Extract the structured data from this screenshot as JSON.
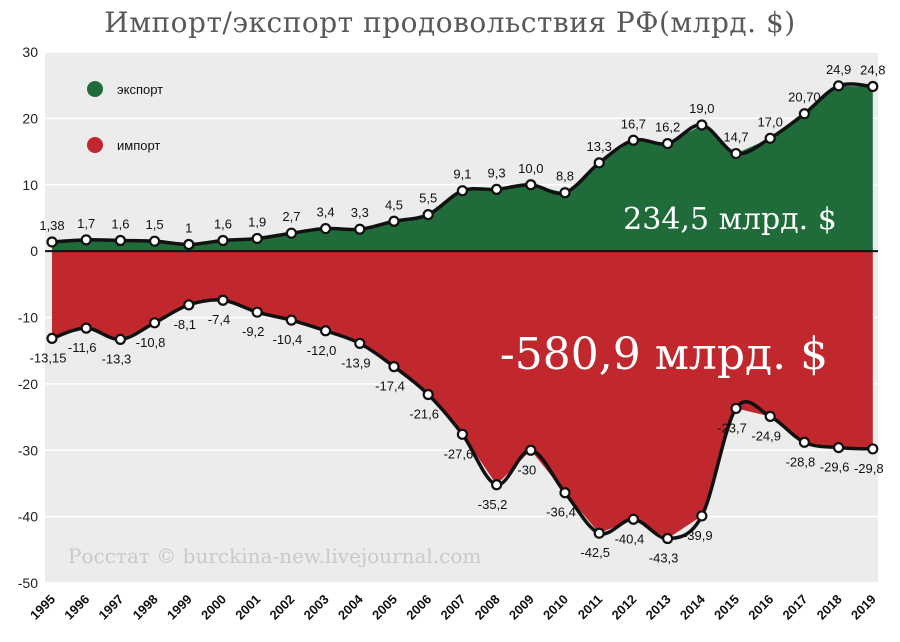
{
  "title": "Импорт/экспорт продовольствия РФ(млрд. $)",
  "colors": {
    "export": "#1f6b3a",
    "import": "#c0282d",
    "line": "#111111",
    "plot_bg": "#ececec"
  },
  "chart_data": {
    "type": "area",
    "title": "Импорт/экспорт продовольствия РФ(млрд. $)",
    "xlabel": "",
    "ylabel": "",
    "ylim": [
      -50,
      30
    ],
    "yticks": [
      "30",
      "20",
      "10",
      "0",
      "-10",
      "-20",
      "-30",
      "-40",
      "-50"
    ],
    "grid": true,
    "legend_position": "top-left",
    "categories": [
      "1995",
      "1996",
      "1997",
      "1998",
      "1999",
      "2000",
      "2001",
      "2002",
      "2003",
      "2004",
      "2005",
      "2006",
      "2007",
      "2008",
      "2009",
      "2010",
      "2011",
      "2012",
      "2013",
      "2014",
      "2015",
      "2016",
      "2017",
      "2018",
      "2019"
    ],
    "series": [
      {
        "name": "экспорт",
        "values": [
          1.38,
          1.7,
          1.6,
          1.5,
          1,
          1.6,
          1.9,
          2.7,
          3.4,
          3.3,
          4.5,
          5.5,
          9.1,
          9.3,
          10.0,
          8.8,
          13.3,
          16.7,
          16.2,
          19.0,
          14.7,
          17.0,
          20.7,
          24.9,
          24.8
        ],
        "labels": [
          "1,38",
          "1,7",
          "1,6",
          "1,5",
          "1",
          "1,6",
          "1,9",
          "2,7",
          "3,4",
          "3,3",
          "4,5",
          "5,5",
          "9,1",
          "9,3",
          "10,0",
          "8,8",
          "13,3",
          "16,7",
          "16,2",
          "19,0",
          "14,7",
          "17,0",
          "20,70",
          "24,9",
          "24,8"
        ]
      },
      {
        "name": "импорт",
        "values": [
          -13.15,
          -11.6,
          -13.3,
          -10.8,
          -8.1,
          -7.4,
          -9.2,
          -10.4,
          -12.0,
          -13.9,
          -17.4,
          -21.6,
          -27.6,
          -35.2,
          -30,
          -36.4,
          -42.5,
          -40.4,
          -43.3,
          -39.9,
          -23.7,
          -24.9,
          -28.8,
          -29.6,
          -29.8
        ],
        "labels": [
          "-13,15",
          "-11,6",
          "-13,3",
          "-10,8",
          "-8,1",
          "-7,4",
          "-9,2",
          "-10,4",
          "-12,0",
          "-13,9",
          "-17,4",
          "-21,6",
          "-27,6",
          "-35,2",
          "-30",
          "-36,4",
          "-42,5",
          "-40,4",
          "-43,3",
          "-39,9",
          "-23,7",
          "-24,9",
          "-28,8",
          "-29,6",
          "-29,8"
        ]
      }
    ],
    "annotations": {
      "export_total": "234,5 млрд. $",
      "import_total": "-580,9 млрд. $",
      "source": "Росстат © burckina-new.livejournal.com"
    }
  }
}
